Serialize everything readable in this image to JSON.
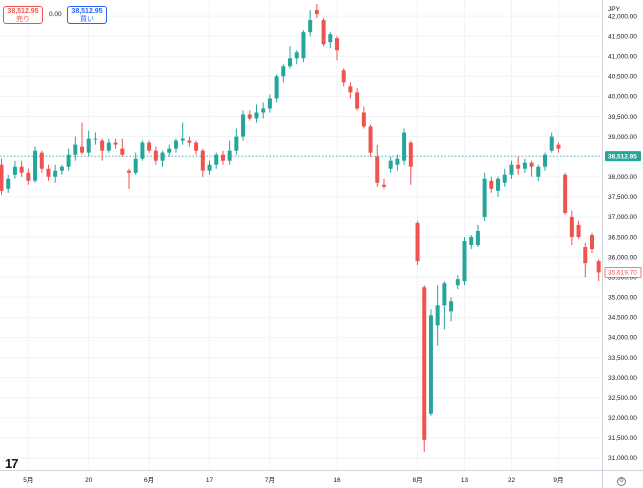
{
  "trade_panel": {
    "sell_price": "38,512.95",
    "sell_label": "売り",
    "spread": "0.00",
    "buy_price": "38,512.95",
    "buy_label": "買い"
  },
  "colors": {
    "up": "#26a69a",
    "down": "#ef5350",
    "grid": "#f0f3fa",
    "axis_text": "#131722",
    "current_line": "#26a69a"
  },
  "icons": {
    "logo": "tradingview-logo-icon",
    "settings": "gear-icon"
  },
  "chart_data": {
    "type": "candlestick",
    "currency": "JPY",
    "grid": true,
    "ylim": [
      30700,
      42400
    ],
    "y_ticks": [
      "42,000.00",
      "41,500.00",
      "41,000.00",
      "40,500.00",
      "40,000.00",
      "39,500.00",
      "39,000.00",
      "38,500.00",
      "38,000.00",
      "37,500.00",
      "37,000.00",
      "36,500.00",
      "36,000.00",
      "35,500.00",
      "35,000.00",
      "34,500.00",
      "34,000.00",
      "33,500.00",
      "33,000.00",
      "32,500.00",
      "32,000.00",
      "31,500.00",
      "31,000.00"
    ],
    "x_labels": [
      {
        "label": "5月",
        "index": 4
      },
      {
        "label": "20",
        "index": 13
      },
      {
        "label": "6月",
        "index": 22
      },
      {
        "label": "17",
        "index": 31
      },
      {
        "label": "7月",
        "index": 40
      },
      {
        "label": "16",
        "index": 50
      },
      {
        "label": "8月",
        "index": 62
      },
      {
        "label": "13",
        "index": 69
      },
      {
        "label": "22",
        "index": 76
      },
      {
        "label": "9月",
        "index": 83
      }
    ],
    "current_price": {
      "value": 38512.95,
      "label": "38,512.95"
    },
    "last_price": {
      "value": 35619.7,
      "label": "35,619.70"
    },
    "candles": [
      {
        "o": 38300,
        "h": 38450,
        "l": 37550,
        "c": 37650
      },
      {
        "o": 37700,
        "h": 38050,
        "l": 37600,
        "c": 37950
      },
      {
        "o": 38050,
        "h": 38400,
        "l": 37950,
        "c": 38250
      },
      {
        "o": 38250,
        "h": 38400,
        "l": 38000,
        "c": 38100
      },
      {
        "o": 38100,
        "h": 38200,
        "l": 37800,
        "c": 37900
      },
      {
        "o": 37900,
        "h": 38750,
        "l": 37850,
        "c": 38650
      },
      {
        "o": 38600,
        "h": 38650,
        "l": 38100,
        "c": 38200
      },
      {
        "o": 38200,
        "h": 38300,
        "l": 37900,
        "c": 38000
      },
      {
        "o": 38000,
        "h": 38300,
        "l": 37850,
        "c": 38150
      },
      {
        "o": 38150,
        "h": 38300,
        "l": 38050,
        "c": 38250
      },
      {
        "o": 38250,
        "h": 38700,
        "l": 38150,
        "c": 38550
      },
      {
        "o": 38550,
        "h": 39000,
        "l": 38400,
        "c": 38800
      },
      {
        "o": 38750,
        "h": 39350,
        "l": 38550,
        "c": 38600
      },
      {
        "o": 38600,
        "h": 39150,
        "l": 38500,
        "c": 38950
      },
      {
        "o": 38950,
        "h": 39100,
        "l": 38800,
        "c": 38950
      },
      {
        "o": 38900,
        "h": 38950,
        "l": 38400,
        "c": 38650
      },
      {
        "o": 38650,
        "h": 38950,
        "l": 38600,
        "c": 38850
      },
      {
        "o": 38850,
        "h": 38950,
        "l": 38700,
        "c": 38800
      },
      {
        "o": 38700,
        "h": 38950,
        "l": 38500,
        "c": 38550
      },
      {
        "o": 38150,
        "h": 38200,
        "l": 37700,
        "c": 38100
      },
      {
        "o": 38100,
        "h": 38600,
        "l": 38050,
        "c": 38450
      },
      {
        "o": 38450,
        "h": 38900,
        "l": 38400,
        "c": 38850
      },
      {
        "o": 38850,
        "h": 38900,
        "l": 38600,
        "c": 38650
      },
      {
        "o": 38650,
        "h": 38750,
        "l": 38300,
        "c": 38400
      },
      {
        "o": 38400,
        "h": 38650,
        "l": 38250,
        "c": 38600
      },
      {
        "o": 38600,
        "h": 38800,
        "l": 38500,
        "c": 38700
      },
      {
        "o": 38700,
        "h": 38950,
        "l": 38600,
        "c": 38900
      },
      {
        "o": 38900,
        "h": 39350,
        "l": 38800,
        "c": 38950
      },
      {
        "o": 38900,
        "h": 39000,
        "l": 38750,
        "c": 38850
      },
      {
        "o": 38850,
        "h": 38900,
        "l": 38550,
        "c": 38650
      },
      {
        "o": 38650,
        "h": 38700,
        "l": 38000,
        "c": 38150
      },
      {
        "o": 38150,
        "h": 38400,
        "l": 38050,
        "c": 38300
      },
      {
        "o": 38300,
        "h": 38600,
        "l": 38200,
        "c": 38550
      },
      {
        "o": 38550,
        "h": 38650,
        "l": 38300,
        "c": 38400
      },
      {
        "o": 38400,
        "h": 38900,
        "l": 38300,
        "c": 38650
      },
      {
        "o": 38650,
        "h": 39200,
        "l": 38550,
        "c": 39000
      },
      {
        "o": 39000,
        "h": 39650,
        "l": 38900,
        "c": 39550
      },
      {
        "o": 39550,
        "h": 39650,
        "l": 39400,
        "c": 39450
      },
      {
        "o": 39450,
        "h": 39800,
        "l": 39350,
        "c": 39600
      },
      {
        "o": 39600,
        "h": 39850,
        "l": 39450,
        "c": 39700
      },
      {
        "o": 39700,
        "h": 40050,
        "l": 39600,
        "c": 39950
      },
      {
        "o": 39950,
        "h": 40550,
        "l": 39850,
        "c": 40500
      },
      {
        "o": 40500,
        "h": 40800,
        "l": 40350,
        "c": 40750
      },
      {
        "o": 40750,
        "h": 41250,
        "l": 40700,
        "c": 40950
      },
      {
        "o": 40950,
        "h": 41150,
        "l": 40800,
        "c": 41100
      },
      {
        "o": 40950,
        "h": 41650,
        "l": 40850,
        "c": 41600
      },
      {
        "o": 41600,
        "h": 42150,
        "l": 41500,
        "c": 41900
      },
      {
        "o": 42150,
        "h": 42300,
        "l": 41950,
        "c": 42050
      },
      {
        "o": 41900,
        "h": 41950,
        "l": 41250,
        "c": 41300
      },
      {
        "o": 41350,
        "h": 41600,
        "l": 41200,
        "c": 41550
      },
      {
        "o": 41450,
        "h": 41500,
        "l": 40900,
        "c": 41150
      },
      {
        "o": 40650,
        "h": 40700,
        "l": 40250,
        "c": 40350
      },
      {
        "o": 40250,
        "h": 40350,
        "l": 39950,
        "c": 40100
      },
      {
        "o": 40100,
        "h": 40200,
        "l": 39650,
        "c": 39700
      },
      {
        "o": 39600,
        "h": 39750,
        "l": 39200,
        "c": 39250
      },
      {
        "o": 39250,
        "h": 39300,
        "l": 38500,
        "c": 38600
      },
      {
        "o": 38500,
        "h": 38800,
        "l": 37750,
        "c": 37850
      },
      {
        "o": 37800,
        "h": 37950,
        "l": 37700,
        "c": 37750
      },
      {
        "o": 38200,
        "h": 38500,
        "l": 38100,
        "c": 38400
      },
      {
        "o": 38300,
        "h": 38550,
        "l": 38150,
        "c": 38450
      },
      {
        "o": 38400,
        "h": 39200,
        "l": 38300,
        "c": 39100
      },
      {
        "o": 38850,
        "h": 38900,
        "l": 37800,
        "c": 38250
      },
      {
        "o": 36850,
        "h": 36900,
        "l": 35800,
        "c": 35900
      },
      {
        "o": 35250,
        "h": 35300,
        "l": 31150,
        "c": 31450
      },
      {
        "o": 32100,
        "h": 34700,
        "l": 32050,
        "c": 34550
      },
      {
        "o": 34300,
        "h": 35300,
        "l": 33800,
        "c": 34800
      },
      {
        "o": 34800,
        "h": 35400,
        "l": 34200,
        "c": 35350
      },
      {
        "o": 34650,
        "h": 35000,
        "l": 34400,
        "c": 34900
      },
      {
        "o": 35300,
        "h": 35550,
        "l": 35200,
        "c": 35450
      },
      {
        "o": 35400,
        "h": 36500,
        "l": 35300,
        "c": 36400
      },
      {
        "o": 36300,
        "h": 36550,
        "l": 36200,
        "c": 36500
      },
      {
        "o": 36300,
        "h": 36800,
        "l": 36250,
        "c": 36650
      },
      {
        "o": 37000,
        "h": 38100,
        "l": 36900,
        "c": 37950
      },
      {
        "o": 37900,
        "h": 38000,
        "l": 37600,
        "c": 37700
      },
      {
        "o": 37650,
        "h": 38000,
        "l": 37500,
        "c": 37950
      },
      {
        "o": 37850,
        "h": 38200,
        "l": 37750,
        "c": 38050
      },
      {
        "o": 38050,
        "h": 38400,
        "l": 37950,
        "c": 38300
      },
      {
        "o": 38300,
        "h": 38500,
        "l": 38050,
        "c": 38200
      },
      {
        "o": 38200,
        "h": 38450,
        "l": 38100,
        "c": 38350
      },
      {
        "o": 38350,
        "h": 38400,
        "l": 38000,
        "c": 38250
      },
      {
        "o": 38000,
        "h": 38300,
        "l": 37900,
        "c": 38250
      },
      {
        "o": 38250,
        "h": 38600,
        "l": 38150,
        "c": 38550
      },
      {
        "o": 38650,
        "h": 39100,
        "l": 38600,
        "c": 39000
      },
      {
        "o": 38800,
        "h": 38850,
        "l": 38600,
        "c": 38700
      },
      {
        "o": 38050,
        "h": 38100,
        "l": 37050,
        "c": 37100
      },
      {
        "o": 37000,
        "h": 37150,
        "l": 36300,
        "c": 36500
      },
      {
        "o": 36800,
        "h": 36900,
        "l": 36450,
        "c": 36500
      },
      {
        "o": 36250,
        "h": 36350,
        "l": 35500,
        "c": 35850
      },
      {
        "o": 36550,
        "h": 36600,
        "l": 36100,
        "c": 36200
      },
      {
        "o": 35900,
        "h": 35950,
        "l": 35400,
        "c": 35620
      }
    ]
  }
}
